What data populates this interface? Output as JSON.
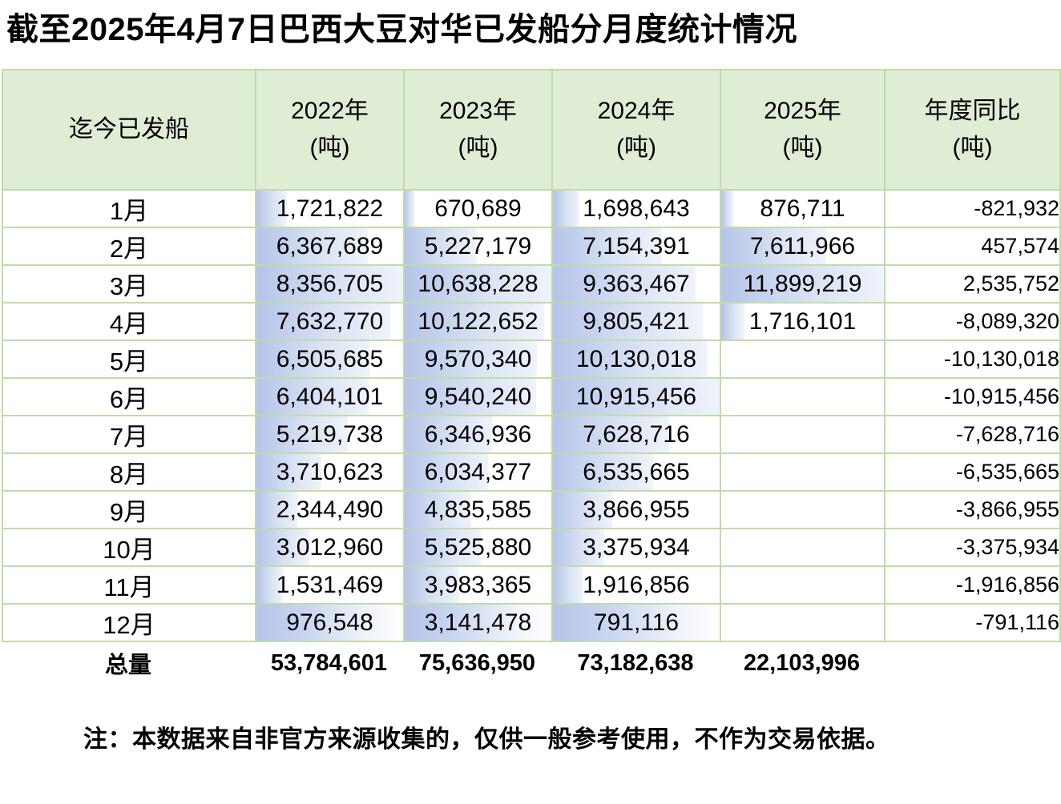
{
  "title": "截至2025年4月7日巴西大豆对华已发船分月度统计情况",
  "table": {
    "header": {
      "first_column": "迄今已发船",
      "years": [
        "2022年",
        "2023年",
        "2024年",
        "2025年"
      ],
      "yoy": "年度同比",
      "unit": "(吨)"
    },
    "rows": [
      {
        "month": "1月",
        "values": [
          "1,721,822",
          "670,689",
          "1,698,643",
          "876,711"
        ],
        "yoy": "-821,932"
      },
      {
        "month": "2月",
        "values": [
          "6,367,689",
          "5,227,179",
          "7,154,391",
          "7,611,966"
        ],
        "yoy": "457,574"
      },
      {
        "month": "3月",
        "values": [
          "8,356,705",
          "10,638,228",
          "9,363,467",
          "11,899,219"
        ],
        "yoy": "2,535,752"
      },
      {
        "month": "4月",
        "values": [
          "7,632,770",
          "10,122,652",
          "9,805,421",
          "1,716,101"
        ],
        "yoy": "-8,089,320"
      },
      {
        "month": "5月",
        "values": [
          "6,505,685",
          "9,570,340",
          "10,130,018",
          ""
        ],
        "yoy": "-10,130,018"
      },
      {
        "month": "6月",
        "values": [
          "6,404,101",
          "9,540,240",
          "10,915,456",
          ""
        ],
        "yoy": "-10,915,456"
      },
      {
        "month": "7月",
        "values": [
          "5,219,738",
          "6,346,936",
          "7,628,716",
          ""
        ],
        "yoy": "-7,628,716"
      },
      {
        "month": "8月",
        "values": [
          "3,710,623",
          "6,034,377",
          "6,535,665",
          ""
        ],
        "yoy": "-6,535,665"
      },
      {
        "month": "9月",
        "values": [
          "2,344,490",
          "4,835,585",
          "3,866,955",
          ""
        ],
        "yoy": "-3,866,955"
      },
      {
        "month": "10月",
        "values": [
          "3,012,960",
          "5,525,880",
          "3,375,934",
          ""
        ],
        "yoy": "-3,375,934"
      },
      {
        "month": "11月",
        "values": [
          "1,531,469",
          "3,983,365",
          "1,916,856",
          ""
        ],
        "yoy": "-1,916,856"
      },
      {
        "month": "12月",
        "values": [
          "976,548",
          "3,141,478",
          "791,116",
          ""
        ],
        "yoy": "-791,116",
        "full_bar": true
      }
    ],
    "totals": {
      "label": "总量",
      "values": [
        "53,784,601",
        "75,636,950",
        "73,182,638",
        "22,103,996"
      ],
      "yoy": ""
    }
  },
  "note": "注：本数据来自非官方来源收集的，仅供一般参考使用，不作为交易依据。",
  "colors": {
    "header_bg": "#E0EDD5",
    "grid_border": "#BFDCA8",
    "bar_start": "#B5C4E8",
    "bar_end": "#EFF3FB",
    "text": "#000000"
  },
  "chart_data": {
    "type": "table",
    "title": "截至2025年4月7日巴西大豆对华已发船分月度统计情况",
    "categories": [
      "1月",
      "2月",
      "3月",
      "4月",
      "5月",
      "6月",
      "7月",
      "8月",
      "9月",
      "10月",
      "11月",
      "12月",
      "总量"
    ],
    "series": [
      {
        "name": "2022年(吨)",
        "values": [
          1721822,
          6367689,
          8356705,
          7632770,
          6505685,
          6404101,
          5219738,
          3710623,
          2344490,
          3012960,
          1531469,
          976548,
          53784601
        ]
      },
      {
        "name": "2023年(吨)",
        "values": [
          670689,
          5227179,
          10638228,
          10122652,
          9570340,
          9540240,
          6346936,
          6034377,
          4835585,
          5525880,
          3983365,
          3141478,
          75636950
        ]
      },
      {
        "name": "2024年(吨)",
        "values": [
          1698643,
          7154391,
          9363467,
          9805421,
          10130018,
          10915456,
          7628716,
          6535665,
          3866955,
          3375934,
          1916856,
          791116,
          73182638
        ]
      },
      {
        "name": "2025年(吨)",
        "values": [
          876711,
          7611966,
          11899219,
          1716101,
          null,
          null,
          null,
          null,
          null,
          null,
          null,
          null,
          22103996
        ]
      },
      {
        "name": "年度同比(吨)",
        "values": [
          -821932,
          457574,
          2535752,
          -8089320,
          -10130018,
          -10915456,
          -7628716,
          -6535665,
          -3866955,
          -3375934,
          -1916856,
          -791116,
          null
        ]
      }
    ],
    "note": "注：本数据来自非官方来源收集的，仅供一般参考使用，不作为交易依据。",
    "layout_hints": {
      "data_bars": "per-year-column, scaled to column max",
      "row_label_column": "迄今已发船"
    }
  }
}
